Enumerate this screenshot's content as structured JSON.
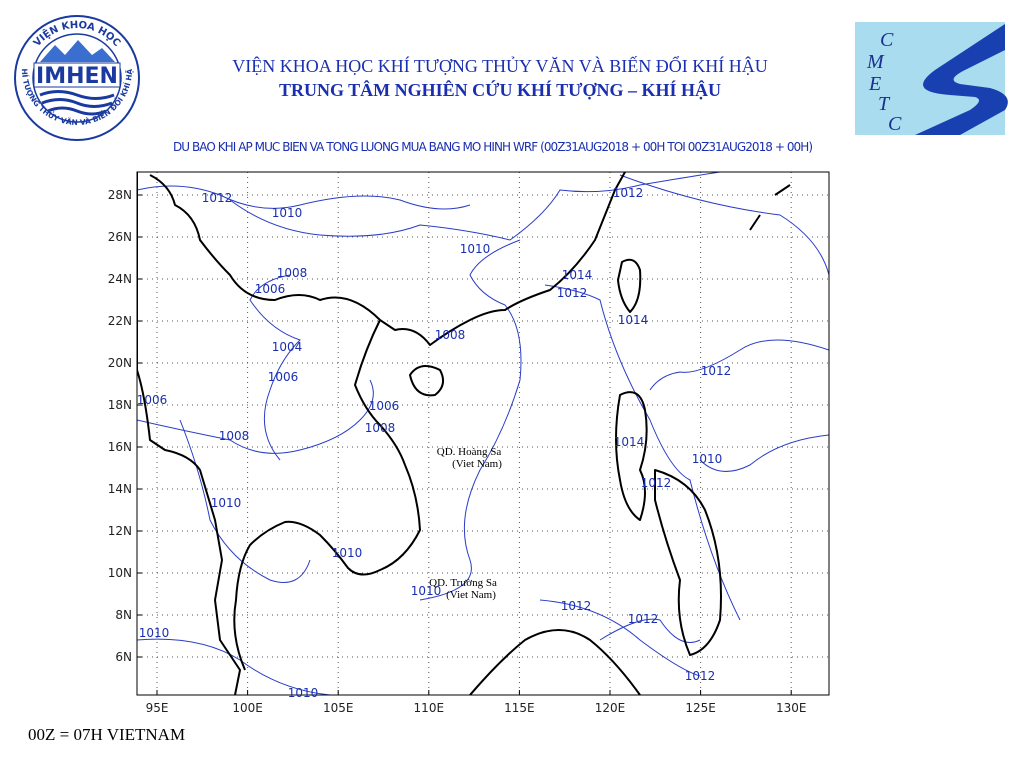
{
  "header": {
    "institute": "VIỆN KHOA HỌC KHÍ TƯỢNG THỦY VĂN VÀ BIẾN ĐỔI KHÍ HẬU",
    "center": "TRUNG TÂM NGHIÊN CỨU KHÍ TƯỢNG – KHÍ HẬU"
  },
  "logos": {
    "left": {
      "name": "IMHEN",
      "arc_top": "VIỆN KHOA HỌC",
      "arc_bottom": "KHÍ TƯỢNG THỦY VĂN VÀ BIẾN ĐỔI KHÍ HẬU"
    },
    "right": {
      "letters": [
        "C",
        "M",
        "E",
        "T",
        "C"
      ]
    }
  },
  "map": {
    "title": "DU BAO KHI AP MUC BIEN VA TONG LUONG MUA BANG MO HINH WRF (00Z31AUG2018 + 00H TOI 00Z31AUG2018 + 00H)",
    "lon_ticks": [
      {
        "value": 95,
        "label": "95E"
      },
      {
        "value": 100,
        "label": "100E"
      },
      {
        "value": 105,
        "label": "105E"
      },
      {
        "value": 110,
        "label": "110E"
      },
      {
        "value": 115,
        "label": "115E"
      },
      {
        "value": 120,
        "label": "120E"
      },
      {
        "value": 125,
        "label": "125E"
      },
      {
        "value": 130,
        "label": "130E"
      }
    ],
    "lat_ticks": [
      {
        "value": 28,
        "label": "28N"
      },
      {
        "value": 26,
        "label": "26N"
      },
      {
        "value": 24,
        "label": "24N"
      },
      {
        "value": 22,
        "label": "22N"
      },
      {
        "value": 20,
        "label": "20N"
      },
      {
        "value": 18,
        "label": "18N"
      },
      {
        "value": 16,
        "label": "16N"
      },
      {
        "value": 14,
        "label": "14N"
      },
      {
        "value": 12,
        "label": "12N"
      },
      {
        "value": 10,
        "label": "10N"
      },
      {
        "value": 8,
        "label": "8N"
      },
      {
        "value": 6,
        "label": "6N"
      }
    ],
    "isobar_labels": [
      1012,
      1010,
      1010,
      1012,
      1008,
      1006,
      1014,
      1012,
      1014,
      1008,
      1004,
      1006,
      1012,
      1006,
      1006,
      1008,
      1008,
      1014,
      1010,
      1012,
      1010,
      1010,
      1010,
      1012,
      1012,
      1010,
      1012,
      1010
    ],
    "places": [
      {
        "name": "QD. Hoàng Sa",
        "country": "(Viet Nam)"
      },
      {
        "name": "QD. Trường Sa",
        "country": "(Viet Nam)"
      }
    ]
  },
  "footer": "00Z = 07H VIETNAM"
}
